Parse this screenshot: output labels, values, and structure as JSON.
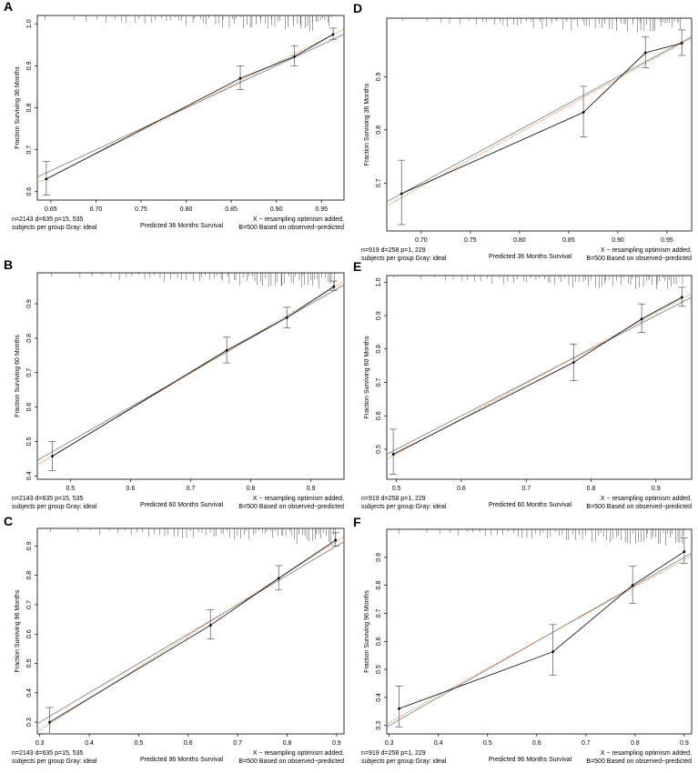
{
  "chart_data": [
    {
      "panel": "A",
      "type": "line",
      "ylabel": "Fraction Surviving 36 Months",
      "xlabel": "Predicted  36 Months Survival",
      "xlim": [
        0.635,
        0.975
      ],
      "ylim": [
        0.58,
        1.02
      ],
      "xticks": [
        0.65,
        0.7,
        0.75,
        0.8,
        0.85,
        0.9,
        0.95
      ],
      "xtick_labels": [
        "0.65",
        "0.70",
        "0.75",
        "0.80",
        "0.85",
        "0.90",
        "0.95"
      ],
      "yticks": [
        0.6,
        0.7,
        0.8,
        0.9,
        1.0
      ],
      "ytick_labels": [
        "0.6",
        "0.7",
        "0.8",
        "0.9",
        "1.0"
      ],
      "points": [
        {
          "x": 0.645,
          "y": 0.63,
          "lo": 0.592,
          "hi": 0.672
        },
        {
          "x": 0.86,
          "y": 0.87,
          "lo": 0.843,
          "hi": 0.9
        },
        {
          "x": 0.92,
          "y": 0.922,
          "lo": 0.9,
          "hi": 0.948
        },
        {
          "x": 0.963,
          "y": 0.975,
          "lo": 0.962,
          "hi": 0.99
        }
      ],
      "note_left": [
        "n=2143 d=635 p=15, 535",
        "subjects per group Gray: ideal"
      ],
      "note_right": [
        "X − resampling optimism added,",
        "B=500 Based on observed−predicted"
      ]
    },
    {
      "panel": "B",
      "type": "line",
      "ylabel": "Fraction Surviving 60 Months",
      "xlabel": "Predicted  60 Months Survival",
      "xlim": [
        0.445,
        0.955
      ],
      "ylim": [
        0.39,
        0.99
      ],
      "xticks": [
        0.5,
        0.6,
        0.7,
        0.8,
        0.9
      ],
      "xtick_labels": [
        "0.5",
        "0.6",
        "0.7",
        "0.8",
        "0.9"
      ],
      "yticks": [
        0.4,
        0.5,
        0.6,
        0.7,
        0.8,
        0.9
      ],
      "ytick_labels": [
        "0.4",
        "0.5",
        "0.6",
        "0.7",
        "0.8",
        "0.9"
      ],
      "points": [
        {
          "x": 0.47,
          "y": 0.457,
          "lo": 0.415,
          "hi": 0.5
        },
        {
          "x": 0.76,
          "y": 0.765,
          "lo": 0.728,
          "hi": 0.803
        },
        {
          "x": 0.86,
          "y": 0.86,
          "lo": 0.83,
          "hi": 0.89
        },
        {
          "x": 0.938,
          "y": 0.95,
          "lo": 0.938,
          "hi": 0.966
        }
      ],
      "note_left": [
        "n=2143 d=635 p=15, 535",
        "subjects per group Gray: ideal"
      ],
      "note_right": [
        "X − resampling optimism added,",
        "B=500 Based on observed−predicted"
      ]
    },
    {
      "panel": "C",
      "type": "line",
      "ylabel": "Fraction Surviving 96 Months",
      "xlabel": "Predicted  96 Months Survival",
      "xlim": [
        0.295,
        0.915
      ],
      "ylim": [
        0.26,
        0.96
      ],
      "xticks": [
        0.3,
        0.4,
        0.5,
        0.6,
        0.7,
        0.8,
        0.9
      ],
      "xtick_labels": [
        "0.3",
        "0.4",
        "0.5",
        "0.6",
        "0.7",
        "0.8",
        "0.9"
      ],
      "yticks": [
        0.3,
        0.4,
        0.5,
        0.6,
        0.7,
        0.8,
        0.9
      ],
      "ytick_labels": [
        "0.3",
        "0.4",
        "0.5",
        "0.6",
        "0.7",
        "0.8",
        "0.9"
      ],
      "points": [
        {
          "x": 0.32,
          "y": 0.3,
          "lo": 0.26,
          "hi": 0.35
        },
        {
          "x": 0.645,
          "y": 0.63,
          "lo": 0.583,
          "hi": 0.683
        },
        {
          "x": 0.783,
          "y": 0.79,
          "lo": 0.75,
          "hi": 0.833
        },
        {
          "x": 0.898,
          "y": 0.92,
          "lo": 0.9,
          "hi": 0.945
        }
      ],
      "note_left": [
        "n=2143 d=635 p=15, 535",
        "subjects per group Gray: ideal"
      ],
      "note_right": [
        "X − resampling optimism added,",
        "B=500 Based on observed−predicted"
      ]
    },
    {
      "panel": "D",
      "type": "line",
      "ylabel": "Fraction Surviving 36 Months",
      "xlabel": "Predicted  36 Months Survival",
      "xlim": [
        0.665,
        0.975
      ],
      "ylim": [
        0.61,
        1.01
      ],
      "xticks": [
        0.7,
        0.75,
        0.8,
        0.85,
        0.9,
        0.95
      ],
      "xtick_labels": [
        "0.70",
        "0.75",
        "0.80",
        "0.85",
        "0.90",
        "0.95"
      ],
      "yticks": [
        0.7,
        0.8,
        0.9
      ],
      "ytick_labels": [
        "0.7",
        "0.8",
        "0.9"
      ],
      "points": [
        {
          "x": 0.68,
          "y": 0.68,
          "lo": 0.622,
          "hi": 0.743
        },
        {
          "x": 0.865,
          "y": 0.833,
          "lo": 0.787,
          "hi": 0.882
        },
        {
          "x": 0.928,
          "y": 0.945,
          "lo": 0.917,
          "hi": 0.975
        },
        {
          "x": 0.965,
          "y": 0.963,
          "lo": 0.94,
          "hi": 0.988
        }
      ],
      "note_left": [
        "n=919 d=258 p=1, 229",
        "subjects per group Gray: ideal"
      ],
      "note_right": [
        "X − resampling optimism added,",
        "B=500 Based on observed−predicted"
      ]
    },
    {
      "panel": "E",
      "type": "line",
      "ylabel": "Fraction Surviving 60 Months",
      "xlabel": "Predicted  60 Months Survival",
      "xlim": [
        0.485,
        0.955
      ],
      "ylim": [
        0.41,
        1.02
      ],
      "xticks": [
        0.5,
        0.6,
        0.7,
        0.8,
        0.9
      ],
      "xtick_labels": [
        "0.5",
        "0.6",
        "0.7",
        "0.8",
        "0.9"
      ],
      "yticks": [
        0.5,
        0.6,
        0.7,
        0.8,
        0.9,
        1.0
      ],
      "ytick_labels": [
        "0.5",
        "0.6",
        "0.7",
        "0.8",
        "0.9",
        "1.0"
      ],
      "points": [
        {
          "x": 0.495,
          "y": 0.485,
          "lo": 0.425,
          "hi": 0.56
        },
        {
          "x": 0.773,
          "y": 0.76,
          "lo": 0.705,
          "hi": 0.815
        },
        {
          "x": 0.878,
          "y": 0.89,
          "lo": 0.85,
          "hi": 0.935
        },
        {
          "x": 0.94,
          "y": 0.955,
          "lo": 0.928,
          "hi": 0.985
        }
      ],
      "note_left": [
        "n=919 d=258 p=1, 229",
        "subjects per group Gray: ideal"
      ],
      "note_right": [
        "X − resampling optimism added,",
        "B=500 Based on observed−predicted"
      ]
    },
    {
      "panel": "F",
      "type": "line",
      "ylabel": "Fraction Surviving 96 Months",
      "xlabel": "Predicted  96 Months Survival",
      "xlim": [
        0.295,
        0.915
      ],
      "ylim": [
        0.27,
        1.0
      ],
      "xticks": [
        0.3,
        0.4,
        0.5,
        0.6,
        0.7,
        0.8,
        0.9
      ],
      "xtick_labels": [
        "0.3",
        "0.4",
        "0.5",
        "0.6",
        "0.7",
        "0.8",
        "0.9"
      ],
      "yticks": [
        0.3,
        0.4,
        0.5,
        0.6,
        0.7,
        0.8,
        0.9
      ],
      "ytick_labels": [
        "0.3",
        "0.4",
        "0.5",
        "0.6",
        "0.7",
        "0.8",
        "0.9"
      ],
      "points": [
        {
          "x": 0.32,
          "y": 0.36,
          "lo": 0.295,
          "hi": 0.44
        },
        {
          "x": 0.633,
          "y": 0.563,
          "lo": 0.48,
          "hi": 0.66
        },
        {
          "x": 0.795,
          "y": 0.8,
          "lo": 0.735,
          "hi": 0.868
        },
        {
          "x": 0.9,
          "y": 0.92,
          "lo": 0.878,
          "hi": 0.97
        }
      ],
      "note_left": [
        "n=919 d=258 p=1, 229",
        "subjects per group Gray: ideal"
      ],
      "note_right": [
        "X − resampling optimism added,",
        "B=500 Based on observed−predicted"
      ]
    }
  ],
  "colors": {
    "observed": "#000000",
    "ideal": "#7a7a7a",
    "corrected": "#d2691e",
    "axis": "#000000"
  }
}
